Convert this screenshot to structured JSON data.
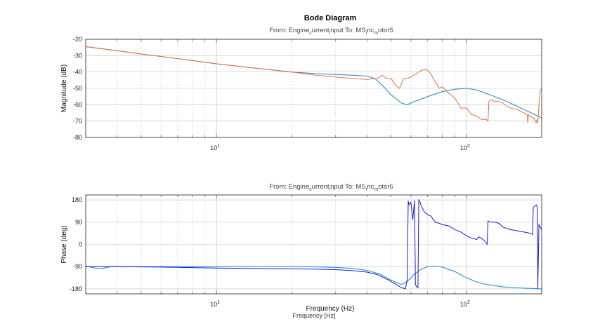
{
  "figure": {
    "title": "Bode Diagram",
    "xlabel_main": "Frequency  (Hz)",
    "xlabel_secondary": "Frequency [Hz]"
  },
  "colors": {
    "model": "#2b8dd0",
    "measured_mag": "#e8703a",
    "measured_phase": "#1a1ad6",
    "grid": "#9a9a9a"
  },
  "chart_data": [
    {
      "type": "line",
      "subtitle": "From: Engine current input  To: MS ric motor5",
      "subtitle_parts": [
        {
          "t": "From: Engine",
          "s": false
        },
        {
          "t": "c",
          "s": true
        },
        {
          "t": "urrent",
          "s": false
        },
        {
          "t": "i",
          "s": true
        },
        {
          "t": "nput  To: MS",
          "s": false
        },
        {
          "t": "i",
          "s": true
        },
        {
          "t": "ric",
          "s": false
        },
        {
          "t": "m",
          "s": true
        },
        {
          "t": "otor5",
          "s": false
        }
      ],
      "ylabel": "Magnitude (dB)",
      "xscale": "log",
      "xlim": [
        3,
        200
      ],
      "ylim": [
        -80,
        -20
      ],
      "yticks": [
        -20,
        -30,
        -40,
        -50,
        -60,
        -70,
        -80
      ],
      "xticks": [
        {
          "value": 10,
          "label": "10",
          "exp": "1"
        },
        {
          "value": 100,
          "label": "10",
          "exp": "2"
        }
      ],
      "grid": true,
      "series": [
        {
          "role": "model",
          "x": [
            3,
            4,
            5,
            6,
            8,
            10,
            15,
            20,
            25,
            30,
            35,
            40,
            43,
            46,
            50,
            55,
            58,
            62,
            70,
            80,
            90,
            100,
            110,
            130,
            150,
            170,
            200
          ],
          "y": [
            -24.5,
            -27,
            -29,
            -30.5,
            -33,
            -35,
            -38,
            -40,
            -41,
            -41.5,
            -42,
            -42.5,
            -44,
            -48,
            -54,
            -59,
            -60,
            -58,
            -55,
            -52,
            -50.5,
            -50,
            -51,
            -55,
            -59,
            -63,
            -68
          ]
        },
        {
          "role": "measured",
          "x": [
            3,
            4,
            5,
            6,
            8,
            10,
            15,
            20,
            25,
            30,
            35,
            40,
            44,
            46,
            48,
            50,
            52,
            54,
            56,
            58,
            60,
            63,
            66,
            68,
            70,
            72,
            75,
            78,
            80,
            85,
            90,
            95,
            100,
            105,
            110,
            115,
            120,
            122,
            123,
            125,
            130,
            135,
            140,
            145,
            150,
            160,
            170,
            175,
            176,
            177,
            180,
            185,
            190,
            192,
            193,
            195,
            197,
            200
          ],
          "y": [
            -24.5,
            -27,
            -29,
            -30.5,
            -33,
            -35,
            -38,
            -40,
            -42,
            -43,
            -44,
            -44.5,
            -44,
            -42,
            -44,
            -44,
            -48,
            -50,
            -44,
            -44,
            -43,
            -41,
            -39,
            -38.5,
            -39,
            -41,
            -46,
            -50,
            -49,
            -53,
            -56,
            -62,
            -62,
            -66,
            -67,
            -69,
            -69,
            -70,
            -58,
            -57,
            -58,
            -58,
            -59,
            -61,
            -62,
            -63,
            -65,
            -66,
            -71,
            -66,
            -67,
            -68,
            -71,
            -69,
            -71,
            -60,
            -52,
            -50
          ]
        }
      ]
    },
    {
      "type": "line",
      "subtitle": "From: Engine current input  To: MS ric motor5",
      "subtitle_parts": [
        {
          "t": "From: Engine",
          "s": false
        },
        {
          "t": "c",
          "s": true
        },
        {
          "t": "urrent",
          "s": false
        },
        {
          "t": "i",
          "s": true
        },
        {
          "t": "nput  To: MS",
          "s": false
        },
        {
          "t": "i",
          "s": true
        },
        {
          "t": "ric",
          "s": false
        },
        {
          "t": "m",
          "s": true
        },
        {
          "t": "otor5",
          "s": false
        }
      ],
      "ylabel": "Phase (deg)",
      "xscale": "log",
      "xlim": [
        3,
        200
      ],
      "ylim": [
        -200,
        200
      ],
      "yticks": [
        180,
        90,
        0,
        -90,
        -180
      ],
      "xticks": [
        {
          "value": 10,
          "label": "10",
          "exp": "1"
        },
        {
          "value": 100,
          "label": "10",
          "exp": "2"
        }
      ],
      "grid": true,
      "series": [
        {
          "role": "model",
          "x": [
            3,
            3.4,
            3.8,
            4.2,
            5,
            6,
            8,
            10,
            15,
            20,
            25,
            30,
            35,
            40,
            45,
            50,
            55,
            58,
            62,
            66,
            70,
            75,
            80,
            90,
            100,
            110,
            120,
            140,
            160,
            200
          ],
          "y": [
            -88,
            -99,
            -90,
            -91,
            -90,
            -90,
            -90,
            -90,
            -90,
            -90,
            -91,
            -93,
            -97,
            -105,
            -120,
            -145,
            -162,
            -150,
            -120,
            -100,
            -90,
            -88,
            -92,
            -110,
            -135,
            -152,
            -162,
            -172,
            -176,
            -180
          ],
          "note": "continuous model phase"
        },
        {
          "role": "measured",
          "x": [
            3,
            4,
            5,
            6,
            8,
            10,
            15,
            20,
            25,
            30,
            35,
            40,
            44,
            48,
            52,
            55,
            57,
            58,
            58.5,
            59,
            60,
            61,
            62,
            62.5,
            63,
            64,
            64.5,
            65,
            66,
            68,
            70,
            72,
            75,
            78,
            80,
            85,
            90,
            95,
            100,
            105,
            110,
            112,
            115,
            118,
            120,
            121,
            122,
            125,
            130,
            135,
            140,
            150,
            160,
            170,
            180,
            184,
            185,
            188,
            190,
            192,
            193,
            195,
            200
          ],
          "y": [
            -90,
            -90,
            -91,
            -92,
            -94,
            -96,
            -98,
            -99,
            -100,
            -102,
            -106,
            -112,
            -122,
            -140,
            -160,
            -175,
            -180,
            -140,
            175,
            160,
            170,
            100,
            178,
            -160,
            -170,
            -175,
            180,
            175,
            155,
            130,
            120,
            115,
            90,
            85,
            80,
            75,
            60,
            50,
            35,
            25,
            20,
            30,
            25,
            15,
            5,
            0,
            95,
            90,
            90,
            85,
            70,
            60,
            55,
            50,
            45,
            40,
            150,
            155,
            160,
            150,
            -180,
            80,
            60
          ]
        }
      ]
    }
  ]
}
